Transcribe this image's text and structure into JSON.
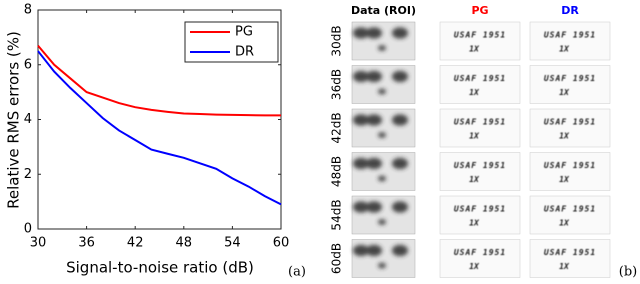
{
  "chart_data": {
    "type": "line",
    "xlabel": "Signal-to-noise ratio (dB)",
    "ylabel": "Relative RMS errors (%)",
    "x": [
      30,
      32,
      34,
      36,
      38,
      40,
      42,
      44,
      46,
      48,
      50,
      52,
      54,
      56,
      58,
      60
    ],
    "series": [
      {
        "name": "PG",
        "color": "#ff0000",
        "values": [
          6.7,
          6.0,
          5.5,
          5.0,
          4.8,
          4.6,
          4.45,
          4.35,
          4.28,
          4.22,
          4.2,
          4.18,
          4.17,
          4.16,
          4.15,
          4.15
        ]
      },
      {
        "name": "DR",
        "color": "#0000ff",
        "values": [
          6.5,
          5.75,
          5.15,
          4.6,
          4.05,
          3.6,
          3.25,
          2.9,
          2.75,
          2.6,
          2.4,
          2.2,
          1.85,
          1.55,
          1.2,
          0.9
        ]
      }
    ],
    "xlim": [
      30,
      60
    ],
    "xticks": [
      30,
      36,
      42,
      48,
      54,
      60
    ],
    "ylim": [
      0,
      8
    ],
    "yticks": [
      0,
      2,
      4,
      6,
      8
    ],
    "grid": false,
    "legend": "upper right",
    "panel_label": "(a)"
  },
  "panel_b": {
    "columns": [
      {
        "text": "Data (ROI)",
        "color": "#000000"
      },
      {
        "text": "PG",
        "color": "#ff0000"
      },
      {
        "text": "DR",
        "color": "#0000ff"
      }
    ],
    "rows": [
      "30dB",
      "36dB",
      "42dB",
      "48dB",
      "54dB",
      "60dB"
    ],
    "target_text": [
      "USAF 1951",
      "1X"
    ],
    "panel_label": "(b)"
  }
}
